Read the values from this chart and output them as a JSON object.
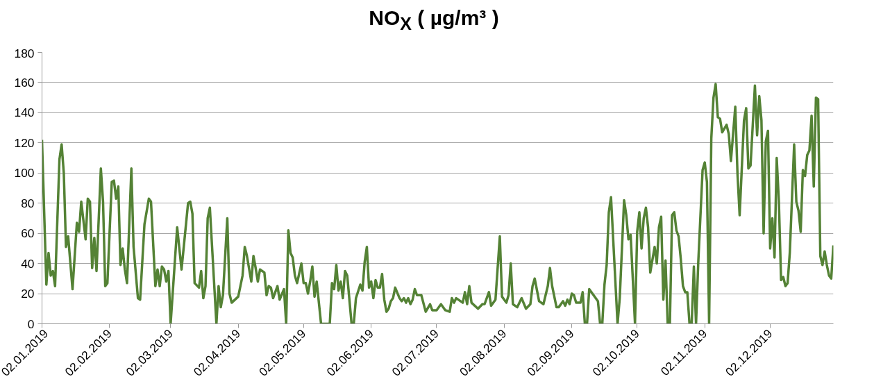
{
  "chart_data": {
    "type": "line",
    "title": "NO$_{X}$ ( µg/m³ )",
    "x": [
      "2019-01-02",
      "2019-01-04",
      "2019-01-05",
      "2019-01-06",
      "2019-01-07",
      "2019-01-08",
      "2019-01-10",
      "2019-01-11",
      "2019-01-12",
      "2019-01-13",
      "2019-01-14",
      "2019-01-16",
      "2019-01-18",
      "2019-01-19",
      "2019-01-20",
      "2019-01-22",
      "2019-01-23",
      "2019-01-24",
      "2019-01-25",
      "2019-01-26",
      "2019-01-27",
      "2019-01-29",
      "2019-01-30",
      "2019-01-31",
      "2019-02-01",
      "2019-02-03",
      "2019-02-04",
      "2019-02-05",
      "2019-02-06",
      "2019-02-07",
      "2019-02-08",
      "2019-02-09",
      "2019-02-10",
      "2019-02-12",
      "2019-02-13",
      "2019-02-15",
      "2019-02-16",
      "2019-02-18",
      "2019-02-20",
      "2019-02-21",
      "2019-02-23",
      "2019-02-24",
      "2019-02-25",
      "2019-02-26",
      "2019-02-27",
      "2019-02-28",
      "2019-03-01",
      "2019-03-02",
      "2019-03-05",
      "2019-03-07",
      "2019-03-10",
      "2019-03-11",
      "2019-03-12",
      "2019-03-13",
      "2019-03-15",
      "2019-03-16",
      "2019-03-17",
      "2019-03-18",
      "2019-03-19",
      "2019-03-20",
      "2019-03-23",
      "2019-03-24",
      "2019-03-25",
      "2019-03-26",
      "2019-03-28",
      "2019-03-29",
      "2019-03-30",
      "2019-04-02",
      "2019-04-04",
      "2019-04-05",
      "2019-04-06",
      "2019-04-08",
      "2019-04-09",
      "2019-04-10",
      "2019-04-11",
      "2019-04-12",
      "2019-04-14",
      "2019-04-15",
      "2019-04-16",
      "2019-04-17",
      "2019-04-18",
      "2019-04-20",
      "2019-04-21",
      "2019-04-23",
      "2019-04-24",
      "2019-04-25",
      "2019-04-26",
      "2019-04-27",
      "2019-04-28",
      "2019-04-29",
      "2019-05-01",
      "2019-05-02",
      "2019-05-03",
      "2019-05-04",
      "2019-05-05",
      "2019-05-06",
      "2019-05-07",
      "2019-05-08",
      "2019-05-10",
      "2019-05-14",
      "2019-05-15",
      "2019-05-16",
      "2019-05-17",
      "2019-05-18",
      "2019-05-19",
      "2019-05-20",
      "2019-05-21",
      "2019-05-22",
      "2019-05-24",
      "2019-05-25",
      "2019-05-26",
      "2019-05-28",
      "2019-05-29",
      "2019-05-30",
      "2019-05-31",
      "2019-06-01",
      "2019-06-02",
      "2019-06-03",
      "2019-06-04",
      "2019-06-05",
      "2019-06-06",
      "2019-06-07",
      "2019-06-08",
      "2019-06-09",
      "2019-06-10",
      "2019-06-11",
      "2019-06-12",
      "2019-06-13",
      "2019-06-15",
      "2019-06-16",
      "2019-06-17",
      "2019-06-18",
      "2019-06-19",
      "2019-06-20",
      "2019-06-21",
      "2019-06-22",
      "2019-06-23",
      "2019-06-25",
      "2019-06-27",
      "2019-06-29",
      "2019-06-30",
      "2019-07-02",
      "2019-07-04",
      "2019-07-06",
      "2019-07-08",
      "2019-07-09",
      "2019-07-10",
      "2019-07-11",
      "2019-07-14",
      "2019-07-15",
      "2019-07-16",
      "2019-07-17",
      "2019-07-18",
      "2019-07-21",
      "2019-07-23",
      "2019-07-24",
      "2019-07-26",
      "2019-07-27",
      "2019-07-29",
      "2019-07-31",
      "2019-08-01",
      "2019-08-03",
      "2019-08-04",
      "2019-08-05",
      "2019-08-06",
      "2019-08-08",
      "2019-08-10",
      "2019-08-12",
      "2019-08-14",
      "2019-08-15",
      "2019-08-16",
      "2019-08-18",
      "2019-08-20",
      "2019-08-22",
      "2019-08-23",
      "2019-08-24",
      "2019-08-26",
      "2019-08-27",
      "2019-08-29",
      "2019-08-30",
      "2019-08-31",
      "2019-09-01",
      "2019-09-02",
      "2019-09-03",
      "2019-09-04",
      "2019-09-06",
      "2019-09-07",
      "2019-09-08",
      "2019-09-09",
      "2019-09-10",
      "2019-09-12",
      "2019-09-14",
      "2019-09-15",
      "2019-09-16",
      "2019-09-17",
      "2019-09-18",
      "2019-09-19",
      "2019-09-20",
      "2019-09-23",
      "2019-09-24",
      "2019-09-26",
      "2019-09-27",
      "2019-09-28",
      "2019-09-29",
      "2019-10-01",
      "2019-10-02",
      "2019-10-03",
      "2019-10-04",
      "2019-10-05",
      "2019-10-06",
      "2019-10-07",
      "2019-10-08",
      "2019-10-10",
      "2019-10-11",
      "2019-10-12",
      "2019-10-13",
      "2019-10-14",
      "2019-10-15",
      "2019-10-16",
      "2019-10-17",
      "2019-10-18",
      "2019-10-19",
      "2019-10-20",
      "2019-10-21",
      "2019-10-22",
      "2019-10-23",
      "2019-10-24",
      "2019-10-25",
      "2019-10-26",
      "2019-10-27",
      "2019-10-28",
      "2019-10-29",
      "2019-10-30",
      "2019-11-01",
      "2019-11-02",
      "2019-11-03",
      "2019-11-04",
      "2019-11-05",
      "2019-11-06",
      "2019-11-07",
      "2019-11-08",
      "2019-11-09",
      "2019-11-10",
      "2019-11-12",
      "2019-11-13",
      "2019-11-14",
      "2019-11-16",
      "2019-11-17",
      "2019-11-18",
      "2019-11-20",
      "2019-11-21",
      "2019-11-22",
      "2019-11-23",
      "2019-11-25",
      "2019-11-26",
      "2019-11-27",
      "2019-11-28",
      "2019-11-29",
      "2019-11-30",
      "2019-12-01",
      "2019-12-02",
      "2019-12-03",
      "2019-12-04",
      "2019-12-05",
      "2019-12-06",
      "2019-12-07",
      "2019-12-08",
      "2019-12-09",
      "2019-12-10",
      "2019-12-11",
      "2019-12-13",
      "2019-12-14",
      "2019-12-15",
      "2019-12-16",
      "2019-12-17",
      "2019-12-18",
      "2019-12-19",
      "2019-12-20",
      "2019-12-21",
      "2019-12-22",
      "2019-12-23",
      "2019-12-24",
      "2019-12-25",
      "2019-12-26",
      "2019-12-27",
      "2019-12-28",
      "2019-12-29",
      "2019-12-30",
      "2019-12-31"
    ],
    "series": [
      {
        "color": "#548235",
        "values": [
          122,
          26,
          47,
          32,
          35,
          25,
          109,
          119,
          100,
          51,
          58,
          23,
          67,
          61,
          81,
          56,
          83,
          81,
          37,
          57,
          35,
          103,
          81,
          25,
          27,
          94,
          95,
          83,
          91,
          39,
          50,
          36,
          27,
          103,
          51,
          17,
          16,
          66,
          83,
          81,
          25,
          36,
          25,
          38,
          36,
          28,
          35,
          0,
          64,
          36,
          80,
          81,
          73,
          27,
          24,
          35,
          17,
          25,
          70,
          77,
          0,
          25,
          11,
          19,
          70,
          20,
          14,
          18,
          32,
          51,
          45,
          28,
          45,
          37,
          28,
          36,
          34,
          19,
          25,
          24,
          17,
          25,
          16,
          23,
          0,
          62,
          47,
          44,
          32,
          27,
          40,
          27,
          27,
          20,
          28,
          38,
          18,
          28,
          0,
          0,
          27,
          23,
          39,
          22,
          28,
          17,
          35,
          32,
          0,
          0,
          17,
          26,
          22,
          41,
          51,
          24,
          28,
          17,
          29,
          24,
          24,
          33,
          16,
          8,
          10,
          15,
          17,
          24,
          17,
          15,
          17,
          14,
          17,
          13,
          16,
          23,
          19,
          19,
          8,
          13,
          9,
          9,
          13,
          9,
          8,
          17,
          14,
          17,
          14,
          21,
          13,
          25,
          14,
          10,
          13,
          13,
          21,
          12,
          16,
          58,
          18,
          14,
          19,
          40,
          13,
          11,
          17,
          10,
          13,
          25,
          30,
          15,
          13,
          25,
          37,
          25,
          11,
          11,
          15,
          12,
          16,
          13,
          20,
          19,
          14,
          14,
          21,
          0,
          0,
          23,
          19,
          15,
          0,
          0,
          26,
          39,
          74,
          84,
          0,
          17,
          82,
          72,
          56,
          59,
          0,
          61,
          74,
          50,
          70,
          77,
          64,
          34,
          51,
          40,
          64,
          71,
          16,
          42,
          0,
          0,
          72,
          74,
          62,
          58,
          43,
          25,
          21,
          21,
          0,
          0,
          38,
          0,
          40,
          102,
          107,
          94,
          0,
          123,
          150,
          159,
          137,
          136,
          127,
          132,
          126,
          108,
          144,
          100,
          72,
          135,
          143,
          103,
          105,
          158,
          125,
          151,
          135,
          60,
          121,
          128,
          50,
          70,
          44,
          110,
          81,
          29,
          31,
          25,
          27,
          47,
          119,
          81,
          75,
          61,
          102,
          98,
          112,
          115,
          138,
          91,
          150,
          149,
          45,
          39,
          48,
          39,
          32,
          30,
          52
        ]
      }
    ],
    "xlim": [
      "2019-01-02",
      "2019-12-31"
    ],
    "xticks": [
      {
        "value": "2019-01-02",
        "label": "02.01.2019"
      },
      {
        "value": "2019-02-02",
        "label": "02.02.2019"
      },
      {
        "value": "2019-03-02",
        "label": "02.03.2019"
      },
      {
        "value": "2019-04-02",
        "label": "02.04.2019"
      },
      {
        "value": "2019-05-02",
        "label": "02.05.2019"
      },
      {
        "value": "2019-06-02",
        "label": "02.06.2019"
      },
      {
        "value": "2019-07-02",
        "label": "02.07.2019"
      },
      {
        "value": "2019-08-02",
        "label": "02.08.2019"
      },
      {
        "value": "2019-09-02",
        "label": "02.09.2019"
      },
      {
        "value": "2019-10-02",
        "label": "02.10.2019"
      },
      {
        "value": "2019-11-02",
        "label": "02.11.2019"
      },
      {
        "value": "2019-12-02",
        "label": "02.12.2019"
      }
    ],
    "ylim": [
      0,
      180
    ],
    "yticks": [
      0,
      20,
      40,
      60,
      80,
      100,
      120,
      140,
      160,
      180
    ],
    "grid": "y",
    "line_style": "solid"
  }
}
